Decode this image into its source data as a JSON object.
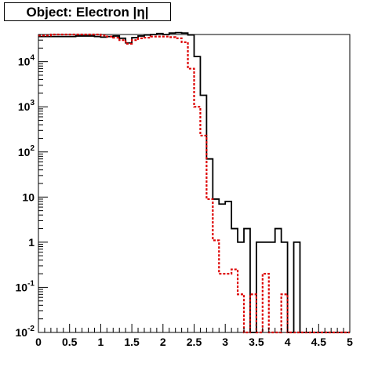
{
  "chart_data": {
    "type": "step-histogram",
    "title": "Object: Electron |η|",
    "xlim": [
      0,
      5
    ],
    "ylim": [
      0.01,
      40000
    ],
    "y_scale": "log",
    "grid": false,
    "x_ticks": [
      {
        "value": 0,
        "label": "0"
      },
      {
        "value": 0.5,
        "label": "0.5"
      },
      {
        "value": 1,
        "label": "1"
      },
      {
        "value": 1.5,
        "label": "1.5"
      },
      {
        "value": 2,
        "label": "2"
      },
      {
        "value": 2.5,
        "label": "2.5"
      },
      {
        "value": 3,
        "label": "3"
      },
      {
        "value": 3.5,
        "label": "3.5"
      },
      {
        "value": 4,
        "label": "4"
      },
      {
        "value": 4.5,
        "label": "4.5"
      },
      {
        "value": 5,
        "label": "5"
      }
    ],
    "y_ticks": [
      {
        "value": 0.01,
        "base": "10",
        "exp": "-2"
      },
      {
        "value": 0.1,
        "base": "10",
        "exp": "-1"
      },
      {
        "value": 1,
        "base": "1",
        "exp": ""
      },
      {
        "value": 10,
        "base": "10",
        "exp": ""
      },
      {
        "value": 100,
        "base": "10",
        "exp": "2"
      },
      {
        "value": 1000,
        "base": "10",
        "exp": "3"
      },
      {
        "value": 10000,
        "base": "10",
        "exp": "4"
      }
    ],
    "bin_width": 0.1,
    "bin_edges_start": 0,
    "series": [
      {
        "color": "#000000",
        "style": "solid",
        "values": [
          36000,
          36000,
          36000,
          36000,
          36000,
          36000,
          37000,
          37000,
          37000,
          36000,
          35000,
          36000,
          37000,
          33000,
          26000,
          34000,
          37000,
          39000,
          40000,
          42000,
          40000,
          43000,
          44000,
          43000,
          39000,
          13000,
          1800,
          70,
          9,
          7,
          8,
          2,
          1,
          2,
          0.01,
          1,
          1,
          1,
          2,
          1,
          0.01,
          1,
          0.01,
          0.01,
          0.01,
          0.01,
          0.01,
          0.01,
          0.01,
          0.01
        ]
      },
      {
        "color": "#dd0000",
        "style": "dashed",
        "values": [
          38000,
          38000,
          40000,
          40000,
          40000,
          40000,
          40000,
          40000,
          40000,
          40000,
          38000,
          36000,
          34000,
          30000,
          25000,
          30000,
          33000,
          34000,
          36000,
          36000,
          36000,
          35000,
          33000,
          27000,
          7000,
          1000,
          230,
          9,
          1.1,
          0.2,
          0.2,
          0.25,
          0.07,
          0.01,
          0.07,
          0.01,
          0.2,
          0.01,
          0.01,
          0.07,
          0.01,
          0.01,
          0.01,
          0.01,
          0.01,
          0.01,
          0.01,
          0.01,
          0.01,
          0.01
        ]
      }
    ]
  }
}
